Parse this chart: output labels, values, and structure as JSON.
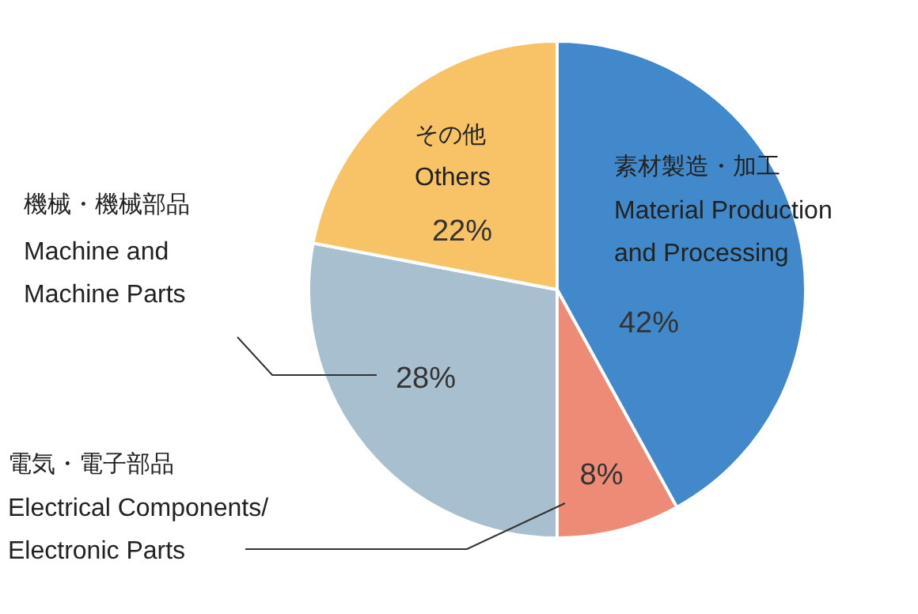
{
  "chart_data": {
    "type": "pie",
    "categories": [
      "素材製造・加工\nMaterial Production\nand Processing",
      "電気・電子部品\nElectrical Components/\nElectronic Parts",
      "機械・機械部品\nMachine and\nMachine Parts",
      "その他\nOthers"
    ],
    "values": [
      42,
      8,
      28,
      22
    ],
    "value_labels": [
      "42%",
      "8%",
      "28%",
      "22%"
    ],
    "colors": [
      "#4189cb",
      "#ee8b77",
      "#a8bfcf",
      "#f8c266"
    ]
  }
}
